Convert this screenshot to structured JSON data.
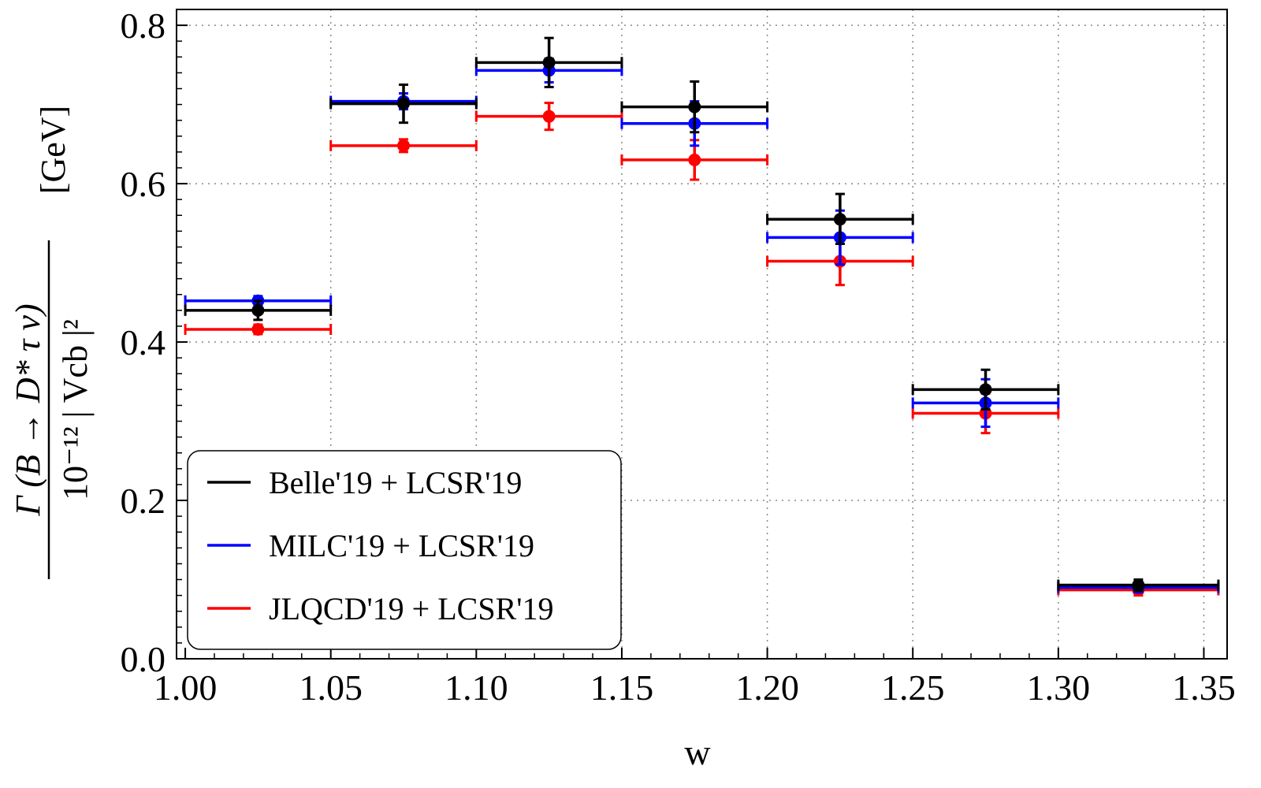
{
  "chart_data": {
    "type": "scatter",
    "title": "",
    "xlabel": "w",
    "ylabel": {
      "numerator": "Γ (B → D* τ ν)",
      "denominator": "10⁻¹² | Vcb |²",
      "unit": "[GeV]"
    },
    "xlim": [
      0.997,
      1.358
    ],
    "ylim": [
      0.0,
      0.82
    ],
    "x_ticks": [
      "1.00",
      "1.05",
      "1.10",
      "1.15",
      "1.20",
      "1.25",
      "1.30",
      "1.35"
    ],
    "y_ticks": [
      "0.0",
      "0.2",
      "0.4",
      "0.6",
      "0.8"
    ],
    "grid": "dotted",
    "legend_position": "bottom-left",
    "series": [
      {
        "name": "Belle'19 + LCSR'19",
        "color": "#000000",
        "points": [
          {
            "x": 1.025,
            "xlo": 1.0,
            "xhi": 1.05,
            "y": 0.44,
            "ylo": 0.428,
            "yhi": 0.452
          },
          {
            "x": 1.075,
            "xlo": 1.05,
            "xhi": 1.1,
            "y": 0.701,
            "ylo": 0.677,
            "yhi": 0.725
          },
          {
            "x": 1.125,
            "xlo": 1.1,
            "xhi": 1.15,
            "y": 0.753,
            "ylo": 0.722,
            "yhi": 0.784
          },
          {
            "x": 1.175,
            "xlo": 1.15,
            "xhi": 1.2,
            "y": 0.697,
            "ylo": 0.665,
            "yhi": 0.729
          },
          {
            "x": 1.225,
            "xlo": 1.2,
            "xhi": 1.25,
            "y": 0.555,
            "ylo": 0.524,
            "yhi": 0.587
          },
          {
            "x": 1.275,
            "xlo": 1.25,
            "xhi": 1.3,
            "y": 0.34,
            "ylo": 0.315,
            "yhi": 0.365
          },
          {
            "x": 1.3275,
            "xlo": 1.3,
            "xhi": 1.355,
            "y": 0.093,
            "ylo": 0.086,
            "yhi": 0.1
          }
        ]
      },
      {
        "name": "MILC'19 + LCSR'19",
        "color": "#0000ff",
        "points": [
          {
            "x": 1.025,
            "xlo": 1.0,
            "xhi": 1.05,
            "y": 0.452,
            "ylo": 0.446,
            "yhi": 0.458
          },
          {
            "x": 1.075,
            "xlo": 1.05,
            "xhi": 1.1,
            "y": 0.704,
            "ylo": 0.694,
            "yhi": 0.714
          },
          {
            "x": 1.125,
            "xlo": 1.1,
            "xhi": 1.15,
            "y": 0.743,
            "ylo": 0.728,
            "yhi": 0.758
          },
          {
            "x": 1.175,
            "xlo": 1.15,
            "xhi": 1.2,
            "y": 0.676,
            "ylo": 0.648,
            "yhi": 0.704
          },
          {
            "x": 1.225,
            "xlo": 1.2,
            "xhi": 1.25,
            "y": 0.532,
            "ylo": 0.498,
            "yhi": 0.566
          },
          {
            "x": 1.275,
            "xlo": 1.25,
            "xhi": 1.3,
            "y": 0.323,
            "ylo": 0.293,
            "yhi": 0.353
          },
          {
            "x": 1.3275,
            "xlo": 1.3,
            "xhi": 1.355,
            "y": 0.09,
            "ylo": 0.084,
            "yhi": 0.096
          }
        ]
      },
      {
        "name": "JLQCD'19 + LCSR'19",
        "color": "#ff0000",
        "points": [
          {
            "x": 1.025,
            "xlo": 1.0,
            "xhi": 1.05,
            "y": 0.416,
            "ylo": 0.41,
            "yhi": 0.422
          },
          {
            "x": 1.075,
            "xlo": 1.05,
            "xhi": 1.1,
            "y": 0.648,
            "ylo": 0.64,
            "yhi": 0.656
          },
          {
            "x": 1.125,
            "xlo": 1.1,
            "xhi": 1.15,
            "y": 0.685,
            "ylo": 0.668,
            "yhi": 0.702
          },
          {
            "x": 1.175,
            "xlo": 1.15,
            "xhi": 1.2,
            "y": 0.63,
            "ylo": 0.605,
            "yhi": 0.655
          },
          {
            "x": 1.225,
            "xlo": 1.2,
            "xhi": 1.25,
            "y": 0.502,
            "ylo": 0.472,
            "yhi": 0.532
          },
          {
            "x": 1.275,
            "xlo": 1.25,
            "xhi": 1.3,
            "y": 0.31,
            "ylo": 0.285,
            "yhi": 0.335
          },
          {
            "x": 1.3275,
            "xlo": 1.3,
            "xhi": 1.355,
            "y": 0.087,
            "ylo": 0.08,
            "yhi": 0.094
          }
        ]
      }
    ]
  }
}
